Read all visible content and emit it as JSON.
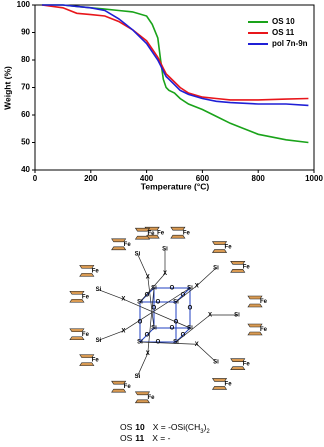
{
  "chart_data": {
    "type": "line",
    "xlabel": "Temperature (°C)",
    "ylabel": "Weight (%)",
    "x": [
      25,
      100,
      150,
      200,
      250,
      300,
      350,
      400,
      420,
      440,
      450,
      460,
      470,
      480,
      500,
      520,
      550,
      600,
      650,
      700,
      800,
      900,
      980
    ],
    "series": [
      {
        "name": "OS 10",
        "color": "#1aa31a",
        "values": [
          100,
          100,
          99.5,
          99,
          98.5,
          98,
          97.5,
          96,
          93,
          88,
          80,
          73,
          70,
          69,
          68,
          66,
          64,
          62,
          59.5,
          57,
          53,
          51,
          50
        ]
      },
      {
        "name": "OS 11",
        "color": "#e8161b",
        "values": [
          100,
          99,
          97,
          96.5,
          96,
          94,
          91,
          87,
          84,
          81,
          79,
          77,
          75,
          74,
          72,
          70,
          68,
          66.5,
          66,
          65.5,
          65.5,
          65.8,
          66
        ]
      },
      {
        "name": "pol 7n-9n",
        "color": "#1f1fd6",
        "values": [
          100,
          100,
          99.5,
          99,
          98,
          95,
          91,
          86,
          83,
          80,
          78,
          76,
          74,
          73,
          71,
          69,
          67.5,
          66,
          65,
          64.5,
          64,
          64,
          63.5
        ]
      }
    ],
    "xlim": [
      0,
      1000
    ],
    "xticks": [
      0,
      200,
      400,
      600,
      800,
      1000
    ],
    "ylim": [
      40,
      100
    ],
    "yticks": [
      40,
      50,
      60,
      70,
      80,
      90,
      100
    ],
    "legend": "upper-right"
  },
  "diagram": {
    "si": "Si",
    "o": "O",
    "fe": "Fe",
    "x": "X",
    "captions": [
      {
        "name": "OS",
        "number": "10",
        "formula": [
          "X = -OSi(CH",
          "3",
          ")",
          "2"
        ]
      },
      {
        "name": "OS",
        "number": "11",
        "formula": [
          "X = -"
        ]
      }
    ]
  }
}
